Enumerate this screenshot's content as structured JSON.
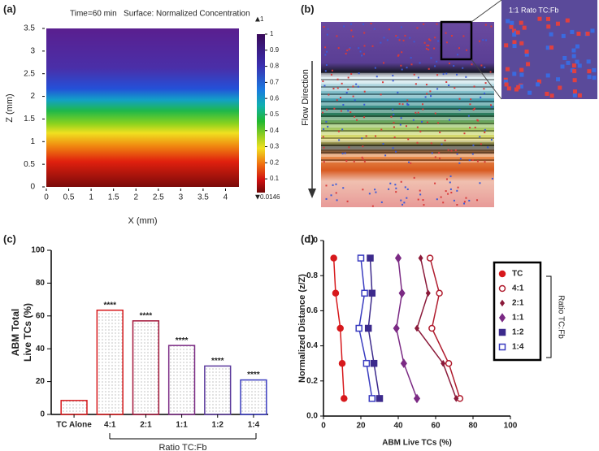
{
  "chart_data": [
    {
      "type": "heatmap",
      "panel_label": "(a)",
      "title": "Time=60 min   Surface: Normalized Concentration",
      "xlabel": "X (mm)",
      "ylabel": "Z (mm)",
      "xlim": [
        0,
        4.3
      ],
      "ylim": [
        0,
        3.5
      ],
      "xticks": [
        0,
        0.5,
        1,
        1.5,
        2,
        2.5,
        3,
        3.5,
        4
      ],
      "yticks": [
        0,
        0.5,
        1,
        1.5,
        2,
        2.5,
        3,
        3.5
      ],
      "colorbar_lim": [
        0.0146,
        1
      ],
      "colorbar_ticks": [
        0.1,
        0.2,
        0.3,
        0.4,
        0.5,
        0.6,
        0.7,
        0.8,
        0.9,
        1
      ],
      "colorbar_max": 1,
      "colorbar_min": 0.0146
    },
    {
      "type": "image",
      "panel_label": "(b)",
      "annotation": "Flow Direction",
      "inset_label": "1:1 Rato TC:Fb"
    },
    {
      "type": "bar",
      "panel_label": "(c)",
      "ylabel": "ABM Total Live TCs (%)",
      "xlabel": "Ratio TC:Fb",
      "categories": [
        "TC Alone",
        "4:1",
        "2:1",
        "1:1",
        "1:2",
        "1:4"
      ],
      "values": [
        8.5,
        63.5,
        57,
        42,
        29.5,
        21
      ],
      "colors": [
        "#d7191c",
        "#d7191c",
        "#a3163a",
        "#7b2a84",
        "#5b3a9c",
        "#3a3cc0"
      ],
      "annotations": [
        null,
        "****",
        "****",
        "****",
        "****",
        "****"
      ],
      "ylim": [
        0,
        100
      ],
      "yticks": [
        0,
        20,
        40,
        60,
        80,
        100
      ]
    },
    {
      "type": "line",
      "panel_label": "(d)",
      "xlabel": "ABM Live TCs (%)",
      "ylabel": "Normalized Distance (z/Z)",
      "legend_title": "Ratio TC:Fb",
      "xlim": [
        0,
        100
      ],
      "xticks": [
        0,
        20,
        40,
        60,
        80,
        100
      ],
      "ylim": [
        0,
        1
      ],
      "yticks": [
        {
          "value": 0,
          "label": "0.0"
        },
        {
          "value": 0.2,
          "label": "0.2"
        },
        {
          "value": 0.4,
          "label": "0.4"
        },
        {
          "value": 0.6,
          "label": "0.6"
        },
        {
          "value": 0.8,
          "label": "0.8"
        },
        {
          "value": 1,
          "label": "1.0"
        }
      ],
      "series": [
        {
          "name": "TC",
          "color": "#d7191c",
          "marker": "circle-filled",
          "x": [
            11,
            10,
            9,
            6.5,
            5.5
          ],
          "y": [
            0.1,
            0.3,
            0.5,
            0.7,
            0.9
          ]
        },
        {
          "name": "4:1",
          "color": "#b01c2e",
          "marker": "circle-open",
          "x": [
            73,
            67,
            58,
            62,
            57
          ],
          "y": [
            0.1,
            0.3,
            0.5,
            0.7,
            0.9
          ]
        },
        {
          "name": "2:1",
          "color": "#8b1a3a",
          "marker": "diamond-small",
          "x": [
            71,
            64,
            50,
            56,
            52
          ],
          "y": [
            0.1,
            0.3,
            0.5,
            0.7,
            0.9
          ]
        },
        {
          "name": "1:1",
          "color": "#7b2a84",
          "marker": "diamond",
          "x": [
            50,
            43,
            39,
            42,
            40
          ],
          "y": [
            0.1,
            0.3,
            0.5,
            0.7,
            0.9
          ]
        },
        {
          "name": "1:2",
          "color": "#3c2a8c",
          "marker": "square-filled",
          "x": [
            30,
            27,
            24,
            26,
            25
          ],
          "y": [
            0.1,
            0.3,
            0.5,
            0.7,
            0.9
          ]
        },
        {
          "name": "1:4",
          "color": "#3a3cc0",
          "marker": "square-open",
          "x": [
            26,
            23,
            19,
            22,
            20
          ],
          "y": [
            0.1,
            0.3,
            0.5,
            0.7,
            0.9
          ]
        }
      ]
    }
  ]
}
